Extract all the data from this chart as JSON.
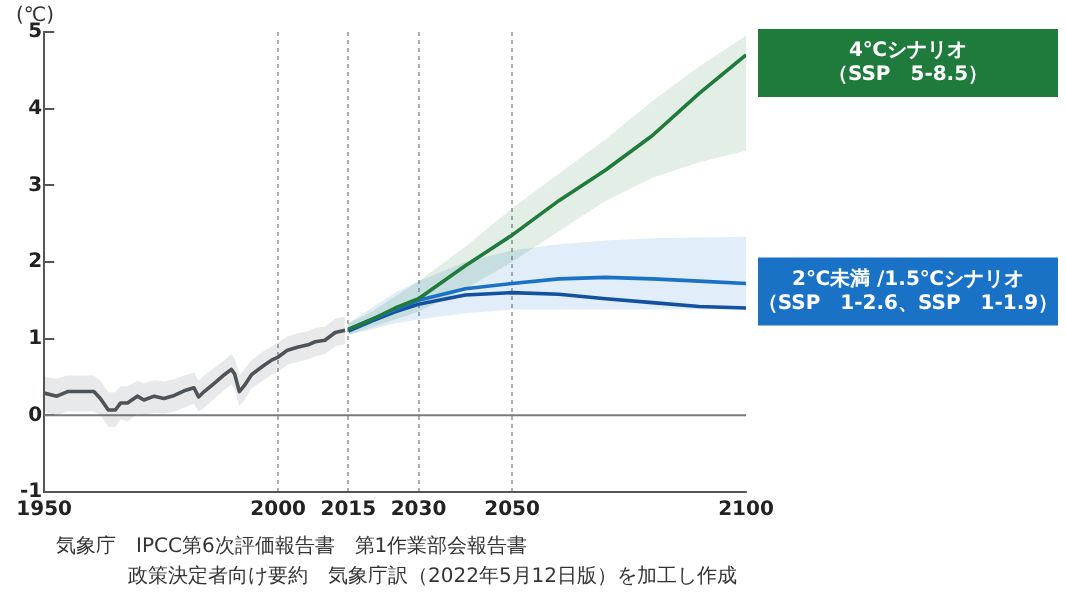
{
  "chart_data": {
    "type": "line",
    "ylabel": "(℃)",
    "xlim": [
      1950,
      2100
    ],
    "xticks": [
      1950,
      2000,
      2015,
      2030,
      2050,
      2100
    ],
    "ylim": [
      -1,
      5
    ],
    "yticks": [
      -1,
      0,
      1,
      2,
      3,
      4,
      5
    ],
    "grid": "x",
    "legend": false,
    "marker": "none",
    "ref_lines": [
      {
        "axis": "y",
        "value": 0,
        "color": "#7a7a7a"
      }
    ],
    "series": [
      {
        "color": "#4d5459",
        "x": [
          1950,
          1952.7,
          1955,
          1960.6,
          1962,
          1963.7,
          1965.2,
          1966.3,
          1967.8,
          1969.9,
          1971.3,
          1973.5,
          1975.6,
          1977.8,
          1979.9,
          1982,
          1983,
          1984.2,
          1986.4,
          1988.5,
          1990,
          1990.7,
          1991.7,
          1992.8,
          1994.3,
          1996.7,
          1998.6,
          2000,
          2002,
          2004.3,
          2006.4,
          2007.9,
          2010,
          2012.2,
          2014.3
        ],
        "values": [
          0.29,
          0.25,
          0.31,
          0.31,
          0.22,
          0.07,
          0.07,
          0.16,
          0.16,
          0.25,
          0.2,
          0.25,
          0.22,
          0.26,
          0.32,
          0.36,
          0.24,
          0.31,
          0.42,
          0.53,
          0.6,
          0.54,
          0.31,
          0.39,
          0.53,
          0.64,
          0.72,
          0.76,
          0.85,
          0.89,
          0.92,
          0.96,
          0.98,
          1.08,
          1.11
        ],
        "lower": [
          0.05,
          0.0,
          0.05,
          0.05,
          0.0,
          -0.15,
          -0.15,
          -0.05,
          -0.08,
          0.02,
          0.0,
          0.03,
          0.02,
          0.05,
          0.1,
          0.15,
          0.05,
          0.1,
          0.22,
          0.33,
          0.4,
          0.35,
          0.12,
          0.2,
          0.35,
          0.45,
          0.53,
          0.57,
          0.66,
          0.7,
          0.73,
          0.77,
          0.8,
          0.9,
          0.93
        ],
        "upper": [
          0.5,
          0.48,
          0.52,
          0.52,
          0.45,
          0.3,
          0.3,
          0.38,
          0.38,
          0.45,
          0.42,
          0.46,
          0.44,
          0.47,
          0.52,
          0.56,
          0.45,
          0.52,
          0.62,
          0.72,
          0.8,
          0.74,
          0.52,
          0.6,
          0.72,
          0.83,
          0.9,
          0.95,
          1.03,
          1.07,
          1.1,
          1.14,
          1.16,
          1.26,
          1.29
        ]
      },
      {
        "name": "4℃シナリオ（SSP　5-8.5）",
        "color": "#1e7b3c",
        "x": [
          2015,
          2020,
          2025,
          2030,
          2040,
          2050,
          2060,
          2070,
          2080,
          2090,
          2100
        ],
        "values": [
          1.12,
          1.25,
          1.4,
          1.52,
          1.95,
          2.35,
          2.8,
          3.2,
          3.65,
          4.2,
          4.7
        ],
        "lower": [
          1.05,
          1.15,
          1.25,
          1.35,
          1.65,
          2.0,
          2.4,
          2.8,
          3.1,
          3.3,
          3.45
        ],
        "upper": [
          1.2,
          1.35,
          1.55,
          1.75,
          2.2,
          2.7,
          3.15,
          3.6,
          4.1,
          4.55,
          4.95
        ]
      },
      {
        "name": "2℃未満 /1.5℃シナリオ（SSP　1-2.6、SSP　1-1.9）",
        "color": "#1a72c6",
        "x": [
          2015,
          2020,
          2025,
          2030,
          2040,
          2050,
          2060,
          2070,
          2080,
          2090,
          2100
        ],
        "values": [
          1.12,
          1.25,
          1.38,
          1.5,
          1.65,
          1.72,
          1.78,
          1.8,
          1.78,
          1.75,
          1.72
        ],
        "lower": [
          1.05,
          1.12,
          1.2,
          1.25,
          1.33,
          1.38,
          1.38,
          1.38,
          1.38,
          1.38,
          1.38
        ],
        "upper": [
          1.2,
          1.4,
          1.6,
          1.75,
          2.0,
          2.15,
          2.23,
          2.28,
          2.31,
          2.32,
          2.33
        ]
      },
      {
        "color": "#1450a0",
        "x": [
          2015,
          2020,
          2025,
          2030,
          2040,
          2050,
          2060,
          2070,
          2080,
          2090,
          2100
        ],
        "values": [
          1.1,
          1.23,
          1.35,
          1.45,
          1.57,
          1.6,
          1.58,
          1.52,
          1.47,
          1.42,
          1.4
        ]
      }
    ],
    "annotations": [
      "気象庁　IPCC第6次評価報告書　第1作業部会報告書",
      "政策決定者向け要約　気象庁訳（2022年5月12日版）を加工し作成"
    ]
  }
}
